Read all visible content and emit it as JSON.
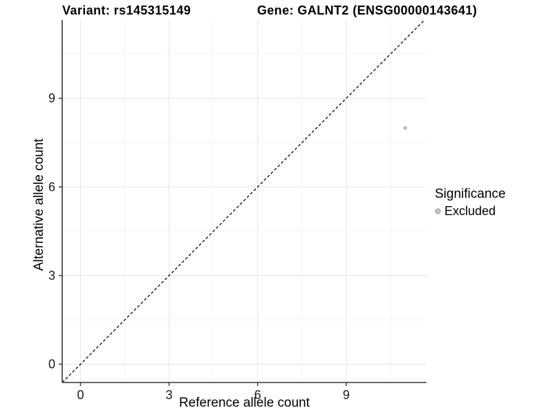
{
  "figure": {
    "title_left": "Variant: rs145315149",
    "title_right": "Gene: GALNT2 (ENSG00000143641)"
  },
  "chart_data": {
    "type": "scatter",
    "title_left": "Variant: rs145315149",
    "title_right": "Gene: GALNT2 (ENSG00000143641)",
    "xlabel": "Reference allele count",
    "ylabel": "Alternative allele count",
    "xlim": [
      -0.62,
      11.72
    ],
    "ylim": [
      -0.62,
      11.65
    ],
    "xticks": [
      0,
      3,
      6,
      9
    ],
    "yticks": [
      0,
      3,
      6,
      9
    ],
    "xminor": [
      1.5,
      4.5,
      7.5,
      10.5
    ],
    "yminor": [
      1.5,
      4.5,
      7.5,
      10.5
    ],
    "grid": "major-and-minor",
    "series": [
      {
        "name": "Excluded",
        "color": "#bdbdbd",
        "point_radius": 2.8,
        "points": [
          {
            "x": 11,
            "y": 8
          }
        ]
      }
    ],
    "reference_line": {
      "kind": "identity",
      "slope": 1,
      "intercept": 0,
      "style": "dashed",
      "color": "#000000"
    },
    "legend": {
      "title": "Significance",
      "position": "right",
      "items": [
        {
          "label": "Excluded",
          "color": "#bdbdbd"
        }
      ]
    },
    "colors": {
      "background": "#ffffff",
      "axis_line": "#333333",
      "tick_label": "#1a1a1a",
      "grid_major": "#e8e8e8",
      "grid_minor": "#f4f4f4",
      "point": "#bdbdbd"
    }
  }
}
